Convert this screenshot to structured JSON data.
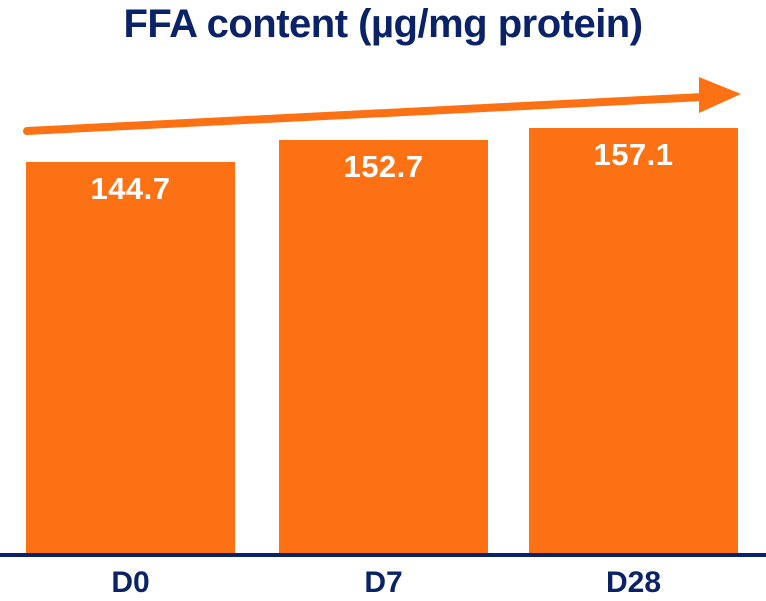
{
  "title": "FFA content (µg/mg protein)",
  "colors": {
    "bar": "#FB7113",
    "arrow": "#FB7113",
    "navy_text": "#0A2368",
    "value_label": "#FFFFFF",
    "background": "#FFFFFF"
  },
  "chart_data": {
    "type": "bar",
    "title": "FFA content (µg/mg protein)",
    "categories": [
      "D0",
      "D7",
      "D28"
    ],
    "values": [
      144.7,
      152.7,
      157.1
    ],
    "value_labels": [
      "144.7",
      "152.7",
      "157.1"
    ],
    "xlabel": "",
    "ylabel": "",
    "ylim": [
      0,
      157.1
    ],
    "grid": false,
    "legend": false,
    "value_labels_position": "inside-top",
    "annotations": [
      "upward trend arrow above bars pointing right"
    ]
  }
}
